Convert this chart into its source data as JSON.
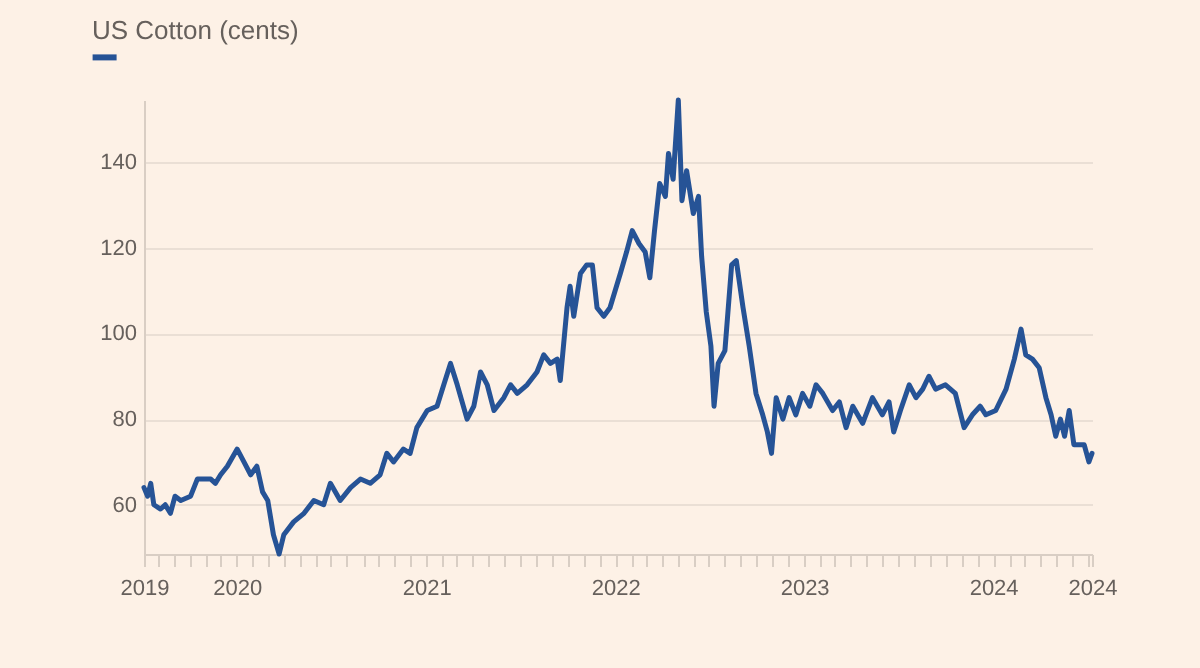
{
  "chart_data": {
    "type": "line",
    "legend": "top left",
    "grid": "y",
    "xlim": [
      "2019-07-06",
      "2024-07-10"
    ],
    "xticks": [
      {
        "value": "2019-07-06",
        "label": "2019"
      },
      {
        "value": "2019-08-01",
        "label": null
      },
      {
        "value": "2019-09-01",
        "label": null
      },
      {
        "value": "2019-10-01",
        "label": null
      },
      {
        "value": "2019-11-01",
        "label": null
      },
      {
        "value": "2019-12-01",
        "label": null
      },
      {
        "value": "2020-01-01",
        "label": "2020"
      },
      {
        "value": "2020-02-01",
        "label": null
      },
      {
        "value": "2020-03-01",
        "label": null
      },
      {
        "value": "2020-04-01",
        "label": null
      },
      {
        "value": "2020-05-01",
        "label": null
      },
      {
        "value": "2020-06-01",
        "label": null
      },
      {
        "value": "2020-07-01",
        "label": null
      },
      {
        "value": "2020-08-01",
        "label": null
      },
      {
        "value": "2020-09-01",
        "label": null
      },
      {
        "value": "2020-10-01",
        "label": null
      },
      {
        "value": "2020-11-01",
        "label": null
      },
      {
        "value": "2020-12-01",
        "label": null
      },
      {
        "value": "2021-01-01",
        "label": "2021"
      },
      {
        "value": "2021-02-01",
        "label": null
      },
      {
        "value": "2021-03-01",
        "label": null
      },
      {
        "value": "2021-04-01",
        "label": null
      },
      {
        "value": "2021-05-01",
        "label": null
      },
      {
        "value": "2021-06-01",
        "label": null
      },
      {
        "value": "2021-07-01",
        "label": null
      },
      {
        "value": "2021-08-01",
        "label": null
      },
      {
        "value": "2021-09-01",
        "label": null
      },
      {
        "value": "2021-10-01",
        "label": null
      },
      {
        "value": "2021-11-01",
        "label": null
      },
      {
        "value": "2021-12-01",
        "label": null
      },
      {
        "value": "2022-01-01",
        "label": "2022"
      },
      {
        "value": "2022-02-01",
        "label": null
      },
      {
        "value": "2022-03-01",
        "label": null
      },
      {
        "value": "2022-04-01",
        "label": null
      },
      {
        "value": "2022-05-01",
        "label": null
      },
      {
        "value": "2022-06-01",
        "label": null
      },
      {
        "value": "2022-07-01",
        "label": null
      },
      {
        "value": "2022-08-01",
        "label": null
      },
      {
        "value": "2022-09-01",
        "label": null
      },
      {
        "value": "2022-10-01",
        "label": null
      },
      {
        "value": "2022-11-01",
        "label": null
      },
      {
        "value": "2022-12-01",
        "label": null
      },
      {
        "value": "2023-01-01",
        "label": "2023"
      },
      {
        "value": "2023-02-01",
        "label": null
      },
      {
        "value": "2023-03-01",
        "label": null
      },
      {
        "value": "2023-04-01",
        "label": null
      },
      {
        "value": "2023-05-01",
        "label": null
      },
      {
        "value": "2023-06-01",
        "label": null
      },
      {
        "value": "2023-07-01",
        "label": null
      },
      {
        "value": "2023-08-01",
        "label": null
      },
      {
        "value": "2023-09-01",
        "label": null
      },
      {
        "value": "2023-10-01",
        "label": null
      },
      {
        "value": "2023-11-01",
        "label": null
      },
      {
        "value": "2023-12-01",
        "label": null
      },
      {
        "value": "2024-01-01",
        "label": "2024"
      },
      {
        "value": "2024-02-01",
        "label": null
      },
      {
        "value": "2024-03-01",
        "label": null
      },
      {
        "value": "2024-04-01",
        "label": null
      },
      {
        "value": "2024-05-01",
        "label": null
      },
      {
        "value": "2024-06-01",
        "label": null
      },
      {
        "value": "2024-07-01",
        "label": null
      },
      {
        "value": "2024-07-10",
        "label": "2024"
      }
    ],
    "ylim": [
      48.5,
      154.5
    ],
    "yticks": [
      60,
      80,
      100,
      120,
      140
    ],
    "x": [
      "2019-07-06",
      "2019-07-13",
      "2019-07-19",
      "2019-07-25",
      "2019-08-07",
      "2019-08-16",
      "2019-08-26",
      "2019-09-04",
      "2019-09-15",
      "2019-10-04",
      "2019-10-17",
      "2019-10-30",
      "2019-11-12",
      "2019-11-21",
      "2019-12-01",
      "2019-12-14",
      "2020-01-02",
      "2020-01-15",
      "2020-01-28",
      "2020-02-09",
      "2020-02-20",
      "2020-03-01",
      "2020-03-12",
      "2020-03-23",
      "2020-04-01",
      "2020-04-20",
      "2020-05-10",
      "2020-05-29",
      "2020-06-17",
      "2020-06-30",
      "2020-07-19",
      "2020-08-08",
      "2020-08-27",
      "2020-09-15",
      "2020-10-04",
      "2020-10-17",
      "2020-10-30",
      "2020-11-18",
      "2020-12-01",
      "2020-12-14",
      "2021-01-03",
      "2021-01-22",
      "2021-02-04",
      "2021-02-17",
      "2021-03-02",
      "2021-03-21",
      "2021-04-03",
      "2021-04-16",
      "2021-04-29",
      "2021-05-12",
      "2021-05-31",
      "2021-06-13",
      "2021-06-26",
      "2021-07-15",
      "2021-08-03",
      "2021-08-16",
      "2021-08-29",
      "2021-09-11",
      "2021-09-17",
      "2021-09-30",
      "2021-10-06",
      "2021-10-13",
      "2021-10-26",
      "2021-11-07",
      "2021-11-18",
      "2021-11-27",
      "2021-12-10",
      "2021-12-22",
      "2022-01-11",
      "2022-01-23",
      "2022-02-03",
      "2022-02-16",
      "2022-02-28",
      "2022-03-09",
      "2022-03-18",
      "2022-03-28",
      "2022-04-08",
      "2022-04-14",
      "2022-04-23",
      "2022-05-03",
      "2022-05-10",
      "2022-05-19",
      "2022-06-01",
      "2022-06-11",
      "2022-06-17",
      "2022-06-26",
      "2022-07-05",
      "2022-07-11",
      "2022-07-19",
      "2022-08-01",
      "2022-08-14",
      "2022-08-23",
      "2022-09-05",
      "2022-09-17",
      "2022-09-30",
      "2022-10-13",
      "2022-10-22",
      "2022-10-30",
      "2022-11-08",
      "2022-11-21",
      "2022-12-03",
      "2022-12-16",
      "2022-12-29",
      "2023-01-12",
      "2023-01-24",
      "2023-02-06",
      "2023-02-25",
      "2023-03-10",
      "2023-03-23",
      "2023-04-05",
      "2023-04-24",
      "2023-05-13",
      "2023-06-01",
      "2023-06-14",
      "2023-06-23",
      "2023-07-06",
      "2023-07-23",
      "2023-08-05",
      "2023-08-18",
      "2023-08-30",
      "2023-09-12",
      "2023-10-01",
      "2023-10-20",
      "2023-11-06",
      "2023-11-22",
      "2023-12-07",
      "2023-12-18",
      "2024-01-06",
      "2024-01-26",
      "2024-02-11",
      "2024-02-24",
      "2024-03-04",
      "2024-03-17",
      "2024-03-30",
      "2024-04-12",
      "2024-04-22",
      "2024-05-01",
      "2024-05-10",
      "2024-05-18",
      "2024-05-27",
      "2024-06-05",
      "2024-06-15",
      "2024-06-25",
      "2024-07-04",
      "2024-07-10"
    ],
    "series": [
      {
        "name": "US Cotton (cents)",
        "color": "#265396",
        "values": [
          64,
          62,
          65,
          60,
          59,
          60,
          58,
          62,
          61,
          62,
          66,
          66,
          66,
          65,
          67,
          69,
          73,
          70,
          67,
          69,
          63,
          61,
          53,
          48.5,
          53,
          56,
          58,
          61,
          60,
          65,
          61,
          64,
          66,
          65,
          67,
          72,
          70,
          73,
          72,
          78,
          82,
          83,
          88,
          93,
          88,
          80,
          83,
          91,
          88,
          82,
          85,
          88,
          86,
          88,
          91,
          95,
          93,
          94,
          89,
          106,
          111,
          104,
          114,
          116,
          116,
          106,
          104,
          106,
          114,
          119,
          124,
          121,
          119,
          113,
          124,
          135,
          132,
          142,
          136,
          154.5,
          131,
          138,
          128,
          132,
          118,
          105,
          97,
          83,
          93,
          96,
          116,
          117,
          106,
          97,
          86,
          81,
          77,
          72,
          85,
          80,
          85,
          81,
          86,
          83,
          88,
          86,
          82,
          84,
          78,
          83,
          79,
          85,
          81,
          84,
          77,
          82,
          88,
          85,
          87,
          90,
          87,
          88,
          86,
          78,
          81,
          83,
          81,
          82,
          87,
          94,
          101,
          95,
          94,
          92,
          85,
          81,
          76,
          80,
          76,
          82,
          74,
          74,
          74,
          70,
          72
        ]
      }
    ]
  }
}
